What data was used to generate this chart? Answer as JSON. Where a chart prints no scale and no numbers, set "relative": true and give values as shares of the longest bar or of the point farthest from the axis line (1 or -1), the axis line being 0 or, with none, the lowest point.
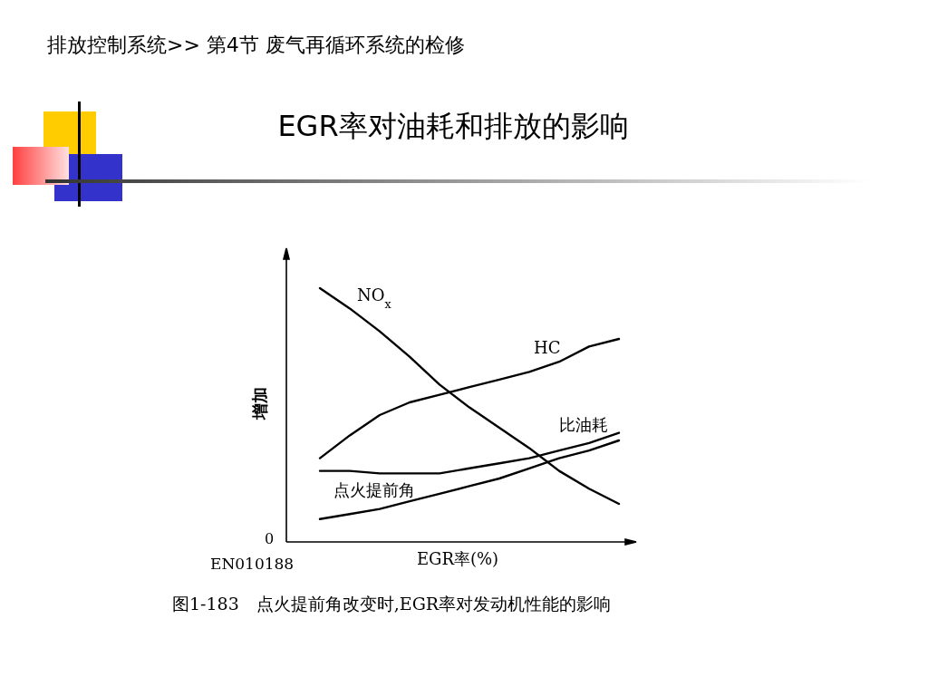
{
  "chart_data": {
    "type": "line",
    "title": "EGR率对油耗和排放的影响",
    "subtitle": "排放控制系统>> 第4节 废气再循环系统的检修",
    "xlabel": "EGR率(%)",
    "ylabel": "增加",
    "relative": true,
    "marker": "none",
    "line_style": "solid",
    "categories": [
      null,
      null,
      null,
      null,
      null,
      null,
      null,
      null,
      null,
      null,
      null
    ],
    "series": [
      {
        "name": "NO$_{x}$",
        "color": "#000000",
        "values": [
          1.0,
          0.92,
          0.83,
          0.73,
          0.62,
          0.53,
          0.45,
          0.37,
          0.28,
          0.21,
          0.15
        ]
      },
      {
        "name": "HC",
        "color": "#000000",
        "values": [
          0.33,
          0.42,
          0.5,
          0.55,
          0.58,
          0.61,
          0.64,
          0.67,
          0.71,
          0.77,
          0.8
        ]
      },
      {
        "name": "比油耗",
        "color": "#000000",
        "values": [
          0.28,
          0.28,
          0.27,
          0.27,
          0.27,
          0.29,
          0.31,
          0.33,
          0.36,
          0.39,
          0.43
        ]
      },
      {
        "name": "点火提前角",
        "color": "#000000",
        "values": [
          0.09,
          0.11,
          0.13,
          0.16,
          0.19,
          0.22,
          0.25,
          0.29,
          0.33,
          0.36,
          0.4
        ]
      }
    ],
    "annotations": [
      "0",
      "EN010188",
      "图1-183　点火提前角改变时,EGR率对发动机性能的影响"
    ]
  }
}
